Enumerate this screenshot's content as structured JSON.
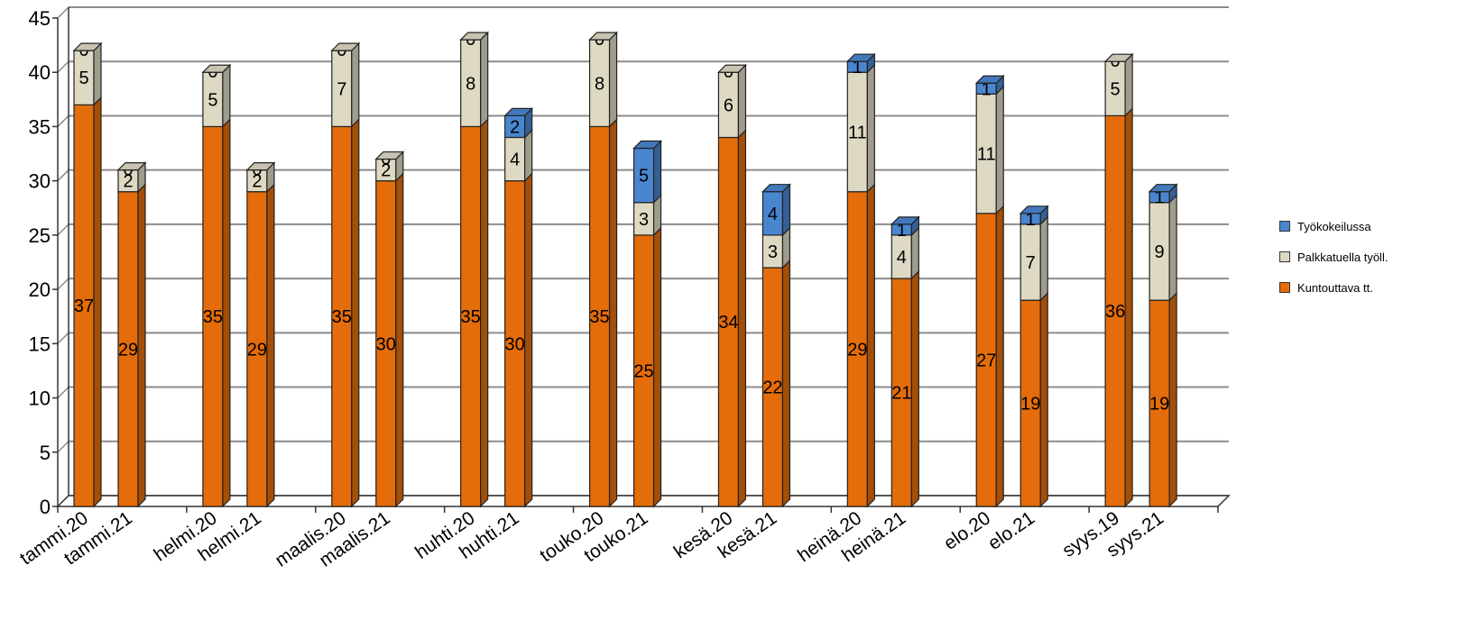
{
  "chart_data": {
    "type": "bar",
    "stacked": true,
    "style": "3d-column",
    "categories": [
      "tammi.20",
      "tammi.21",
      "helmi.20",
      "helmi.21",
      "maalis.20",
      "maalis.21",
      "huhti.20",
      "huhti.21",
      "touko.20",
      "touko.21",
      "kesä.20",
      "kesä.21",
      "heinä.20",
      "heinä.21",
      "elo.20",
      "elo.21",
      "syys.19",
      "syys.21"
    ],
    "series": [
      {
        "name": "Kuntouttava tt.",
        "color": "#e46c0a",
        "values": [
          37,
          29,
          35,
          29,
          35,
          30,
          35,
          30,
          35,
          25,
          34,
          22,
          29,
          21,
          27,
          19,
          36,
          19
        ]
      },
      {
        "name": "Palkkatuella työll.",
        "color": "#ddd9c3",
        "values": [
          5,
          2,
          5,
          2,
          7,
          2,
          8,
          4,
          8,
          3,
          6,
          3,
          11,
          4,
          11,
          7,
          5,
          9
        ]
      },
      {
        "name": "Työkokeilussa",
        "color": "#4a86d0",
        "values": [
          0,
          0,
          0,
          0,
          0,
          0,
          0,
          2,
          0,
          5,
          0,
          4,
          1,
          1,
          1,
          1,
          0,
          1
        ]
      }
    ],
    "ylim": [
      0,
      45
    ],
    "yticks": [
      "0",
      "5",
      "10",
      "15",
      "20",
      "25",
      "30",
      "35",
      "40",
      "45"
    ],
    "grid": true,
    "legend": "right",
    "legend_order": [
      "Työkokeilussa",
      "Palkkatuella työll.",
      "Kuntouttava tt."
    ]
  }
}
